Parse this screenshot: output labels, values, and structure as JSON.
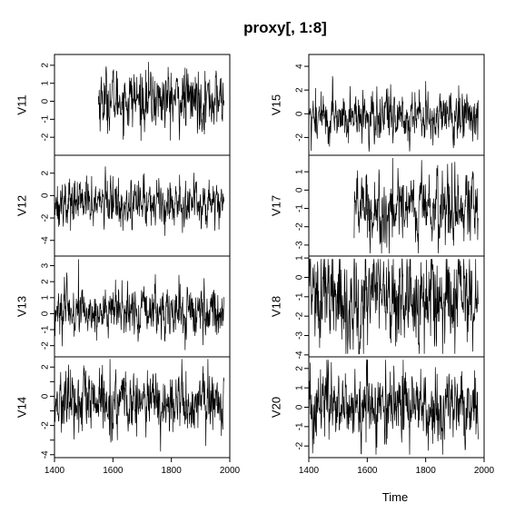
{
  "chart_data": {
    "type": "line",
    "title": "proxy[, 1:8]",
    "xlabel": "Time",
    "xlim": [
      1400,
      2000
    ],
    "x_ticks": [
      1400,
      1600,
      1800,
      2000
    ],
    "x_ticks_display": [
      "1400",
      "1600",
      "1800",
      "2000"
    ],
    "panels": [
      {
        "name": "V11",
        "column": 0,
        "start": 1550,
        "end": 1980,
        "mean": 0.1,
        "sd": 0.8,
        "ylim": [
          -3,
          2.6
        ],
        "yticks": [
          -2,
          -1,
          0,
          1,
          2
        ],
        "ytick_labels": [
          "-2",
          "-1",
          "0",
          "1",
          "2"
        ]
      },
      {
        "name": "V12",
        "column": 0,
        "start": 1400,
        "end": 1980,
        "mean": -0.6,
        "sd": 1.0,
        "ylim": [
          -5.4,
          3.6
        ],
        "yticks": [
          -4,
          -2,
          0,
          2
        ],
        "ytick_labels": [
          "-4",
          "-2",
          "0",
          "2"
        ]
      },
      {
        "name": "V13",
        "column": 0,
        "start": 1400,
        "end": 1980,
        "mean": 0.1,
        "sd": 0.75,
        "ylim": [
          -2.7,
          3.6
        ],
        "yticks": [
          -2,
          -1,
          0,
          1,
          2,
          3
        ],
        "ytick_labels": [
          "-2",
          "-1",
          "0",
          "1",
          "2",
          "3"
        ]
      },
      {
        "name": "V14",
        "column": 0,
        "start": 1400,
        "end": 1980,
        "mean": -0.5,
        "sd": 1.0,
        "ylim": [
          -4.2,
          2.7
        ],
        "yticks": [
          -4,
          -3,
          -2,
          -1,
          0,
          1,
          2
        ],
        "ytick_labels": [
          "-4",
          "",
          "-2",
          "",
          "0",
          "",
          "2"
        ]
      },
      {
        "name": "V15",
        "column": 1,
        "start": 1400,
        "end": 1980,
        "mean": -0.3,
        "sd": 1.0,
        "ylim": [
          -3.5,
          5.0
        ],
        "yticks": [
          -2,
          0,
          2,
          4
        ],
        "ytick_labels": [
          "-2",
          "0",
          "2",
          "4"
        ]
      },
      {
        "name": "V17",
        "column": 1,
        "start": 1555,
        "end": 1980,
        "mean": -1.0,
        "sd": 0.95,
        "ylim": [
          -3.6,
          1.9
        ],
        "yticks": [
          -3,
          -2,
          -1,
          0,
          1
        ],
        "ytick_labels": [
          "-3",
          "-2",
          "-1",
          "0",
          "1"
        ]
      },
      {
        "name": "V18",
        "column": 1,
        "start": 1400,
        "end": 1980,
        "mean": -1.1,
        "sd": 1.2,
        "ylim": [
          -4.1,
          1.1
        ],
        "yticks": [
          -4,
          -3,
          -2,
          -1,
          0,
          1
        ],
        "ytick_labels": [
          "-4",
          "-3",
          "-2",
          "-1",
          "0",
          "1"
        ]
      },
      {
        "name": "V20",
        "column": 1,
        "start": 1400,
        "end": 1980,
        "mean": 0.0,
        "sd": 0.9,
        "ylim": [
          -2.6,
          2.6
        ],
        "yticks": [
          -2,
          -1,
          0,
          1,
          2
        ],
        "ytick_labels": [
          "-2",
          "-1",
          "0",
          "1",
          "2"
        ]
      }
    ]
  }
}
